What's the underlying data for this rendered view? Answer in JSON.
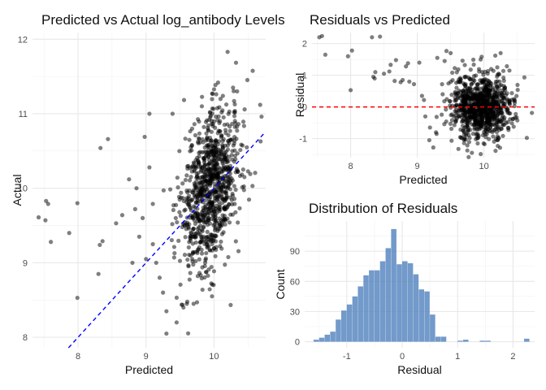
{
  "chart_data": [
    {
      "type": "scatter",
      "title": "Predicted vs Actual log_antibody Levels",
      "xlabel": "Predicted",
      "ylabel": "Actual",
      "xlim": [
        7.33,
        10.76
      ],
      "ylim": [
        7.86,
        12.09
      ],
      "xticks": [
        8,
        9,
        10
      ],
      "yticks": [
        8,
        9,
        10,
        11,
        12
      ],
      "point_color": "#000000",
      "reference_line": {
        "type": "identity",
        "color": "#0000ff",
        "style": "dashed"
      },
      "grid": true,
      "legend": "none",
      "points": [
        [
          7.42,
          9.61
        ],
        [
          7.53,
          9.83
        ],
        [
          7.56,
          9.79
        ],
        [
          7.6,
          9.28
        ],
        [
          7.52,
          9.57
        ],
        [
          7.87,
          9.4
        ],
        [
          7.99,
          9.8
        ],
        [
          7.99,
          8.53
        ],
        [
          8.33,
          10.54
        ],
        [
          8.44,
          10.66
        ],
        [
          8.32,
          9.24
        ],
        [
          8.3,
          8.85
        ],
        [
          8.36,
          9.29
        ],
        [
          8.56,
          9.53
        ],
        [
          8.75,
          10.12
        ],
        [
          8.65,
          9.64
        ],
        [
          8.84,
          9.72
        ],
        [
          8.86,
          10.0
        ],
        [
          8.9,
          9.35
        ],
        [
          8.95,
          9.6
        ],
        [
          8.98,
          10.69
        ],
        [
          9.05,
          10.28
        ],
        [
          9.1,
          9.79
        ],
        [
          9.0,
          9.05
        ],
        [
          9.1,
          9.25
        ],
        [
          9.15,
          9.0
        ],
        [
          9.2,
          8.8
        ],
        [
          9.25,
          8.6
        ],
        [
          9.3,
          8.35
        ],
        [
          9.3,
          8.05
        ],
        [
          9.45,
          8.2
        ],
        [
          9.55,
          8.4
        ],
        [
          9.6,
          8.45
        ],
        [
          9.7,
          8.45
        ],
        [
          9.75,
          8.47
        ],
        [
          10.2,
          11.83
        ],
        [
          10.28,
          11.35
        ],
        [
          10.34,
          11.3
        ],
        [
          9.39,
          11.0
        ],
        [
          9.05,
          11.0
        ],
        [
          8.8,
          9.0
        ]
      ]
    },
    {
      "type": "scatter",
      "title": "Residuals vs Predicted",
      "xlabel": "Predicted",
      "ylabel": "Residual",
      "xlim": [
        7.42,
        10.76
      ],
      "ylim": [
        -1.6,
        2.35
      ],
      "xticks": [
        8,
        9,
        10
      ],
      "yticks": [
        -1,
        0,
        1,
        2
      ],
      "point_color": "#000000",
      "reference_line": {
        "type": "horizontal",
        "y": 0,
        "color": "#ff0000",
        "style": "dashed"
      },
      "grid": true,
      "legend": "none",
      "points": [
        [
          7.53,
          2.2
        ],
        [
          7.57,
          2.24
        ],
        [
          7.62,
          1.65
        ],
        [
          7.96,
          1.6
        ],
        [
          8.02,
          1.78
        ],
        [
          8.0,
          0.53
        ],
        [
          8.32,
          2.2
        ],
        [
          8.44,
          2.22
        ],
        [
          8.34,
          0.95
        ],
        [
          8.36,
          0.9
        ],
        [
          8.37,
          1.1
        ],
        [
          8.5,
          1.05
        ],
        [
          8.6,
          1.33
        ],
        [
          8.58,
          1.12
        ],
        [
          8.68,
          1.48
        ],
        [
          8.66,
          0.82
        ],
        [
          8.75,
          0.78
        ],
        [
          8.78,
          0.85
        ],
        [
          8.83,
          1.28
        ],
        [
          8.86,
          1.38
        ],
        [
          8.88,
          0.8
        ],
        [
          8.95,
          0.72
        ],
        [
          9.03,
          1.4
        ],
        [
          9.07,
          0.35
        ],
        [
          9.1,
          0.22
        ],
        [
          9.12,
          -0.3
        ],
        [
          9.19,
          -0.65
        ],
        [
          9.18,
          -1.05
        ],
        [
          9.24,
          -1.28
        ],
        [
          9.28,
          -0.8
        ],
        [
          9.3,
          1.55
        ],
        [
          9.41,
          1.45
        ],
        [
          9.5,
          1.7
        ],
        [
          9.95,
          1.5
        ],
        [
          10.17,
          1.62
        ],
        [
          10.25,
          1.7
        ]
      ]
    },
    {
      "type": "bar",
      "title": "Distribution of Residuals",
      "xlabel": "Residual",
      "ylabel": "Count",
      "xlim": [
        -1.76,
        2.39
      ],
      "ylim": [
        -6,
        120
      ],
      "xticks": [
        -1,
        0,
        1,
        2
      ],
      "yticks": [
        0,
        30,
        60,
        90
      ],
      "bar_color": "#4f81bd",
      "grid": true,
      "legend": "none",
      "bin_width": 0.1,
      "bin_start": -1.6,
      "values": [
        2,
        4,
        7,
        10,
        22,
        31,
        37,
        45,
        55,
        66,
        71,
        71,
        80,
        93,
        112,
        77,
        80,
        78,
        67,
        52,
        50,
        27,
        5,
        5,
        0,
        0,
        1,
        2,
        0,
        0,
        1,
        1,
        0,
        0,
        0,
        0,
        0,
        0,
        3
      ]
    }
  ]
}
